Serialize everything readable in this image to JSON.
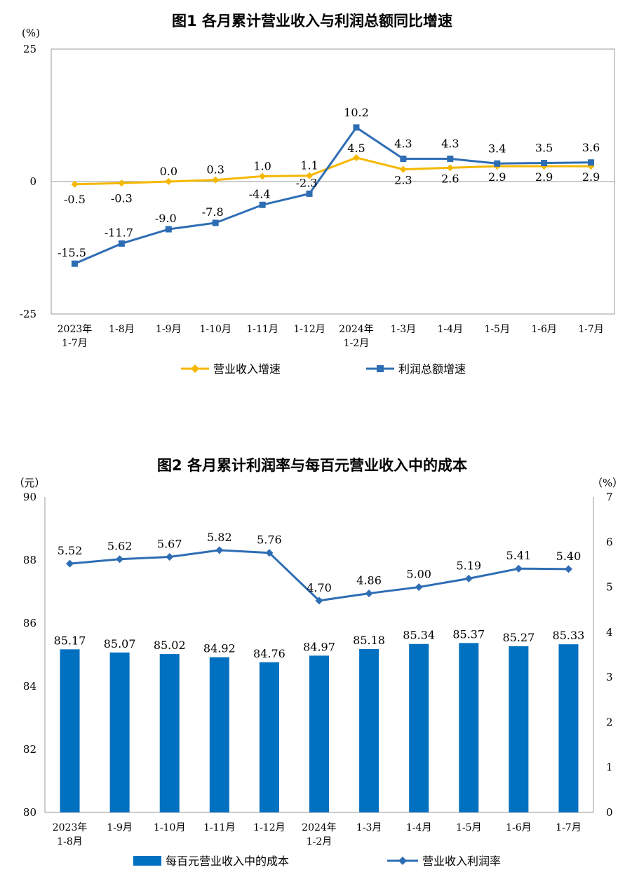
{
  "chart_data": [
    {
      "type": "line",
      "title": "图1  各月累计营业收入与利润总额同比增速",
      "unit": "(%)",
      "ylim": [
        -25,
        25
      ],
      "yticks": [
        "25",
        "0",
        "-25"
      ],
      "categories": [
        [
          "2023年",
          "1-7月"
        ],
        [
          "1-8月"
        ],
        [
          "1-9月"
        ],
        [
          "1-10月"
        ],
        [
          "1-11月"
        ],
        [
          "1-12月"
        ],
        [
          "2024年",
          "1-2月"
        ],
        [
          "1-3月"
        ],
        [
          "1-4月"
        ],
        [
          "1-5月"
        ],
        [
          "1-6月"
        ],
        [
          "1-7月"
        ]
      ],
      "series": [
        {
          "name": "营业收入增速",
          "color": "#F5B800",
          "marker": "diamond",
          "values": [
            -0.5,
            -0.3,
            0.0,
            0.3,
            1.0,
            1.1,
            4.5,
            2.3,
            2.6,
            2.9,
            2.9,
            2.9
          ],
          "labels": [
            "-0.5",
            "-0.3",
            "0.0",
            "0.3",
            "1.0",
            "1.1",
            "4.5",
            "2.3",
            "2.6",
            "2.9",
            "2.9",
            "2.9"
          ]
        },
        {
          "name": "利润总额增速",
          "color": "#2E6DB4",
          "marker": "square",
          "values": [
            -15.5,
            -11.7,
            -9.0,
            -7.8,
            -4.4,
            -2.3,
            10.2,
            4.3,
            4.3,
            3.4,
            3.5,
            3.6
          ],
          "labels": [
            "-15.5",
            "-11.7",
            "-9.0",
            "-7.8",
            "-4.4",
            "-2.3",
            "10.2",
            "4.3",
            "4.3",
            "3.4",
            "3.5",
            "3.6"
          ]
        }
      ]
    },
    {
      "type": "bar+line",
      "title": "图2  各月累计利润率与每百元营业收入中的成本",
      "left_unit": "（元）",
      "right_unit": "（%）",
      "ylim_left": [
        80,
        90
      ],
      "ylim_right": [
        0,
        7
      ],
      "yticks_left": [
        "90",
        "88",
        "86",
        "84",
        "82",
        "80"
      ],
      "yticks_right": [
        "7",
        "6",
        "5",
        "4",
        "3",
        "2",
        "1",
        "0"
      ],
      "categories": [
        [
          "2023年",
          "1-8月"
        ],
        [
          "1-9月"
        ],
        [
          "1-10月"
        ],
        [
          "1-11月"
        ],
        [
          "1-12月"
        ],
        [
          "2024年",
          "1-2月"
        ],
        [
          "1-3月"
        ],
        [
          "1-4月"
        ],
        [
          "1-5月"
        ],
        [
          "1-6月"
        ],
        [
          "1-7月"
        ]
      ],
      "bar_series": {
        "name": "每百元营业收入中的成本",
        "color": "#0070C0",
        "values": [
          85.17,
          85.07,
          85.02,
          84.92,
          84.76,
          84.97,
          85.18,
          85.34,
          85.37,
          85.27,
          85.33
        ],
        "labels": [
          "85.17",
          "85.07",
          "85.02",
          "84.92",
          "84.76",
          "84.97",
          "85.18",
          "85.34",
          "85.37",
          "85.27",
          "85.33"
        ]
      },
      "line_series": {
        "name": "营业收入利润率",
        "color": "#2E6DB4",
        "marker": "diamond",
        "values": [
          5.52,
          5.62,
          5.67,
          5.82,
          5.76,
          4.7,
          4.86,
          5.0,
          5.19,
          5.41,
          5.4
        ],
        "labels": [
          "5.52",
          "5.62",
          "5.67",
          "5.82",
          "5.76",
          "4.70",
          "4.86",
          "5.00",
          "5.19",
          "5.41",
          "5.40"
        ]
      }
    }
  ]
}
